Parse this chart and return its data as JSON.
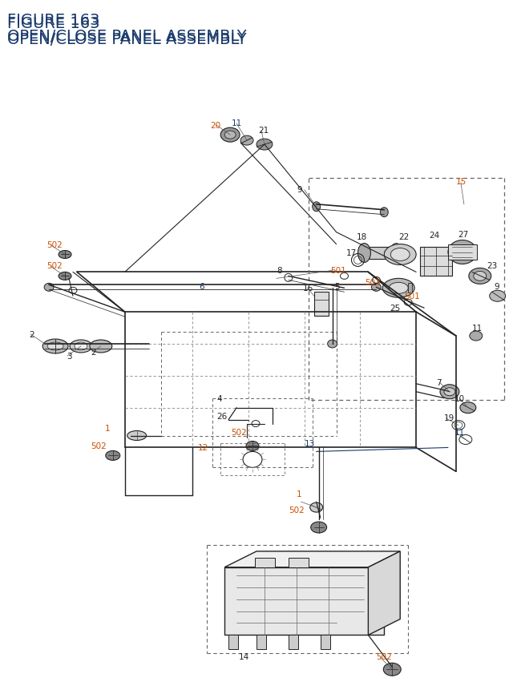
{
  "title_line1": "FIGURE 163",
  "title_line2": "OPEN/CLOSE PANEL ASSEMBLY",
  "title_color": "#1a3a6b",
  "title_fontsize": 14,
  "bg_color": "#ffffff",
  "orange": "#c85000",
  "blue": "#1a3a6b",
  "black": "#222222",
  "gray": "#666666",
  "label_fontsize": 7.5
}
